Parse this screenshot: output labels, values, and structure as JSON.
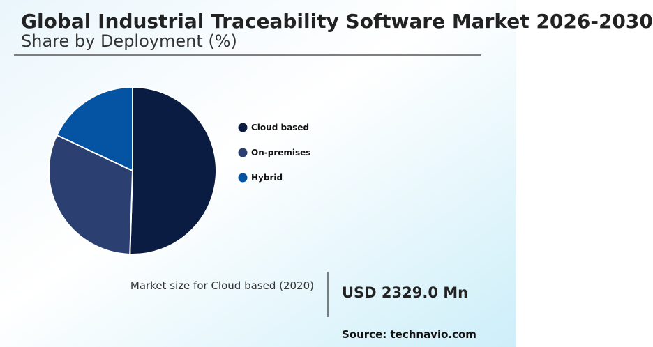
{
  "chart_data": {
    "type": "pie",
    "title": "Global Industrial Traceability Software Market 2026-2030",
    "subtitle": "Share by Deployment (%)",
    "categories": [
      "Cloud based",
      "On-premises",
      "Hybrid"
    ],
    "values": [
      50.5,
      31.5,
      18
    ],
    "colors": [
      "#0a1c42",
      "#2b4070",
      "#0553a3"
    ]
  },
  "market_size": {
    "label": "Market size for Cloud based (2020)",
    "value": "USD 2329.0 Mn"
  },
  "source": "Source: technavio.com"
}
